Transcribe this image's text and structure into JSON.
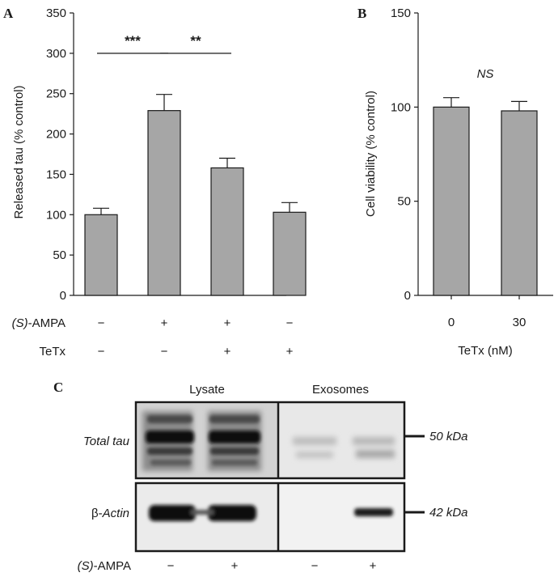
{
  "panels": {
    "a": {
      "letter": "A",
      "chart_data": {
        "type": "bar",
        "ylabel": "Released tau (% control)",
        "ylim": [
          0,
          350
        ],
        "yticks": [
          0,
          50,
          100,
          150,
          200,
          250,
          300,
          350
        ],
        "values": [
          100,
          229,
          158,
          103
        ],
        "errors": [
          8,
          20,
          12,
          12
        ],
        "conditions": [
          {
            "label_italic": "(S)",
            "label_rest": "-AMPA",
            "signs": [
              "−",
              "+",
              "+",
              "−"
            ]
          },
          {
            "label_italic": "",
            "label_rest": "TeTx",
            "signs": [
              "−",
              "−",
              "+",
              "+"
            ]
          }
        ],
        "significance": [
          {
            "from": 0,
            "to": 1,
            "label": "***"
          },
          {
            "from": 1,
            "to": 2,
            "label": "**"
          }
        ],
        "bar_color": "#a6a6a6"
      }
    },
    "b": {
      "letter": "B",
      "chart_data": {
        "type": "bar",
        "ylabel": "Cell viability (% control)",
        "xlabel": "TeTx (nM)",
        "ylim": [
          0,
          150
        ],
        "yticks": [
          0,
          50,
          100,
          150
        ],
        "categories": [
          "0",
          "30"
        ],
        "values": [
          100,
          98
        ],
        "errors": [
          5,
          5
        ],
        "annotation": "NS",
        "bar_color": "#a6a6a6"
      }
    },
    "c": {
      "letter": "C",
      "columns": [
        "Lysate",
        "Exosomes"
      ],
      "rows": [
        {
          "label": "Total tau",
          "marker": "50 kDa"
        },
        {
          "label_prefix": "β-",
          "label": "Actin",
          "marker": "42 kDa"
        }
      ],
      "condition": {
        "label_italic": "(S)",
        "label_rest": "-AMPA",
        "signs": [
          "−",
          "+",
          "−",
          "+"
        ]
      }
    }
  }
}
